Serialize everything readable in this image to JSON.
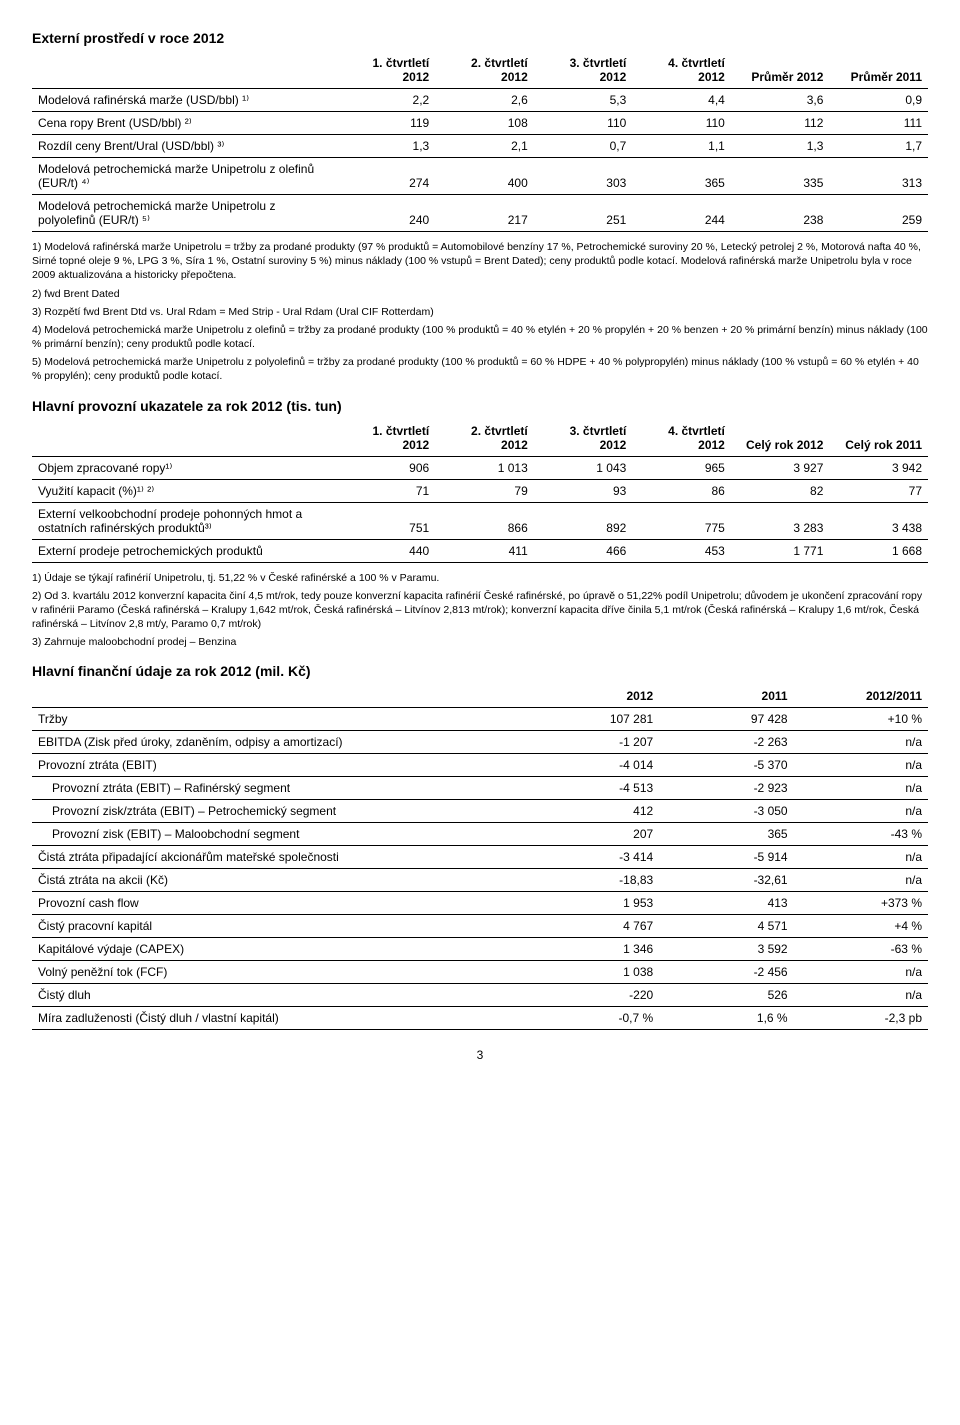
{
  "section1": {
    "title": "Externí prostředí v roce 2012",
    "columns": [
      "1. čtvrtletí 2012",
      "2. čtvrtletí 2012",
      "3. čtvrtletí 2012",
      "4. čtvrtletí 2012",
      "Průměr 2012",
      "Průměr 2011"
    ],
    "rows": [
      {
        "label": "Modelová rafinérská marže (USD/bbl) ¹⁾",
        "cells": [
          "2,2",
          "2,6",
          "5,3",
          "4,4",
          "3,6",
          "0,9"
        ]
      },
      {
        "label": "Cena ropy Brent (USD/bbl) ²⁾",
        "cells": [
          "119",
          "108",
          "110",
          "110",
          "112",
          "111"
        ]
      },
      {
        "label": "Rozdíl ceny Brent/Ural (USD/bbl) ³⁾",
        "cells": [
          "1,3",
          "2,1",
          "0,7",
          "1,1",
          "1,3",
          "1,7"
        ]
      },
      {
        "label": "Modelová petrochemická marže Unipetrolu z olefinů (EUR/t) ⁴⁾",
        "cells": [
          "274",
          "400",
          "303",
          "365",
          "335",
          "313"
        ]
      },
      {
        "label": "Modelová petrochemická marže Unipetrolu z polyolefinů (EUR/t) ⁵⁾",
        "cells": [
          "240",
          "217",
          "251",
          "244",
          "238",
          "259"
        ]
      }
    ],
    "notes": [
      "1) Modelová rafinérská marže Unipetrolu = tržby za prodané produkty (97 % produktů = Automobilové benzíny 17 %, Petrochemické suroviny 20 %, Letecký petrolej 2 %, Motorová nafta 40 %, Sirné topné oleje 9 %, LPG 3 %, Síra 1 %, Ostatní suroviny 5 %) minus náklady (100 % vstupů = Brent Dated); ceny produktů podle kotací. Modelová rafinérská marže Unipetrolu byla v roce 2009 aktualizována a historicky přepočtena.",
      "2) fwd Brent Dated",
      "3) Rozpětí fwd Brent Dtd vs. Ural Rdam = Med Strip - Ural Rdam (Ural CIF Rotterdam)",
      "4) Modelová petrochemická marže Unipetrolu z olefinů = tržby za prodané produkty (100 % produktů = 40 % etylén + 20 % propylén + 20 % benzen + 20 % primární benzín) minus náklady (100 % primární benzín); ceny produktů podle kotací.",
      "5) Modelová petrochemická marže Unipetrolu z polyolefinů = tržby za prodané produkty (100 % produktů = 60 % HDPE + 40 % polypropylén) minus náklady (100 % vstupů = 60 % etylén + 40 % propylén); ceny produktů podle kotací."
    ]
  },
  "section2": {
    "title": "Hlavní provozní ukazatele za rok 2012 (tis. tun)",
    "columns": [
      "1. čtvrtletí 2012",
      "2. čtvrtletí 2012",
      "3. čtvrtletí 2012",
      "4. čtvrtletí 2012",
      "Celý rok 2012",
      "Celý rok 2011"
    ],
    "rows": [
      {
        "label": "Objem zpracované ropy¹⁾",
        "cells": [
          "906",
          "1 013",
          "1 043",
          "965",
          "3 927",
          "3 942"
        ]
      },
      {
        "label": "Využití kapacit (%)¹⁾ ²⁾",
        "cells": [
          "71",
          "79",
          "93",
          "86",
          "82",
          "77"
        ]
      },
      {
        "label": "Externí velkoobchodní prodeje pohonných hmot a ostatních rafinérských produktů³⁾",
        "cells": [
          "751",
          "866",
          "892",
          "775",
          "3 283",
          "3 438"
        ]
      },
      {
        "label": "Externí prodeje petrochemických produktů",
        "cells": [
          "440",
          "411",
          "466",
          "453",
          "1 771",
          "1 668"
        ]
      }
    ],
    "notes": [
      "1) Údaje se týkají rafinérií Unipetrolu, tj. 51,22 % v České rafinérské a 100 % v Paramu.",
      "2) Od 3. kvartálu 2012 konverzní kapacita činí 4,5 mt/rok, tedy pouze konverzní kapacita rafinérií České rafinérské, po úpravě o 51,22% podíl Unipetrolu; důvodem je ukončení zpracování ropy v rafinérii Paramo (Česká rafinérská – Kralupy 1,642 mt/rok, Česká rafinérská – Litvínov 2,813 mt/rok); konverzní kapacita dříve činila 5,1 mt/rok (Česká rafinérská – Kralupy 1,6 mt/rok, Česká rafinérská – Litvínov 2,8 mt/y, Paramo 0,7 mt/rok)",
      "3) Zahrnuje maloobchodní prodej – Benzina"
    ]
  },
  "section3": {
    "title": "Hlavní finanční údaje za rok 2012 (mil. Kč)",
    "columns": [
      "2012",
      "2011",
      "2012/2011"
    ],
    "rows": [
      {
        "label": "Tržby",
        "cells": [
          "107 281",
          "97 428",
          "+10 %"
        ],
        "indent": false
      },
      {
        "label": "EBITDA (Zisk před úroky, zdaněním, odpisy a amortizací)",
        "cells": [
          "-1 207",
          "-2 263",
          "n/a"
        ],
        "indent": false
      },
      {
        "label": "Provozní ztráta (EBIT)",
        "cells": [
          "-4 014",
          "-5 370",
          "n/a"
        ],
        "indent": false
      },
      {
        "label": "Provozní ztráta (EBIT) – Rafinérský segment",
        "cells": [
          "-4 513",
          "-2 923",
          "n/a"
        ],
        "indent": true
      },
      {
        "label": "Provozní zisk/ztráta (EBIT) – Petrochemický segment",
        "cells": [
          "412",
          "-3 050",
          "n/a"
        ],
        "indent": true
      },
      {
        "label": "Provozní zisk (EBIT) – Maloobchodní segment",
        "cells": [
          "207",
          "365",
          "-43 %"
        ],
        "indent": true
      },
      {
        "label": "Čistá ztráta připadající akcionářům mateřské společnosti",
        "cells": [
          "-3 414",
          "-5 914",
          "n/a"
        ],
        "indent": false
      },
      {
        "label": "Čistá ztráta na akcii (Kč)",
        "cells": [
          "-18,83",
          "-32,61",
          "n/a"
        ],
        "indent": false
      },
      {
        "label": "Provozní cash flow",
        "cells": [
          "1 953",
          "413",
          "+373 %"
        ],
        "indent": false
      },
      {
        "label": "Čistý pracovní kapitál",
        "cells": [
          "4 767",
          "4 571",
          "+4 %"
        ],
        "indent": false
      },
      {
        "label": "Kapitálové výdaje (CAPEX)",
        "cells": [
          "1 346",
          "3 592",
          "-63 %"
        ],
        "indent": false
      },
      {
        "label": "Volný peněžní tok (FCF)",
        "cells": [
          "1 038",
          "-2 456",
          "n/a"
        ],
        "indent": false
      },
      {
        "label": "Čistý dluh",
        "cells": [
          "-220",
          "526",
          "n/a"
        ],
        "indent": false
      },
      {
        "label": "Míra zadluženosti (Čistý dluh / vlastní kapitál)",
        "cells": [
          "-0,7 %",
          "1,6 %",
          "-2,3 pb"
        ],
        "indent": false
      }
    ]
  },
  "page_number": "3",
  "colwidths": {
    "t1_first": "34%",
    "t1_other": "11%",
    "t3_first": "55%",
    "t3_other": "15%"
  }
}
